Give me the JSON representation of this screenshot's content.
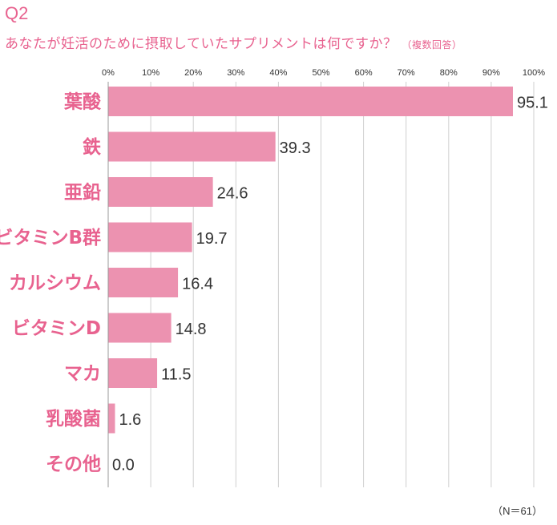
{
  "header": {
    "q_label": "Q2",
    "question": "あなたが妊活のために摂取していたサプリメントは何ですか？",
    "note": "（複数回答）"
  },
  "footnote": "（N＝61）",
  "colors": {
    "accent": "#e8628f",
    "bar": "#ec92b0",
    "grid": "#cfcfcf",
    "value_text": "#333333"
  },
  "chart_data": {
    "type": "bar",
    "orientation": "horizontal",
    "title": "あなたが妊活のために摂取していたサプリメントは何ですか？（複数回答）",
    "xlabel": "",
    "ylabel": "",
    "xlim": [
      0,
      100
    ],
    "x_tick_labels": [
      "0%",
      "10%",
      "20%",
      "30%",
      "40%",
      "50%",
      "60%",
      "70%",
      "80%",
      "90%",
      "100%"
    ],
    "categories": [
      "葉酸",
      "鉄",
      "亜鉛",
      "ビタミンB群",
      "カルシウム",
      "ビタミンD",
      "マカ",
      "乳酸菌",
      "その他"
    ],
    "values": [
      95.1,
      39.3,
      24.6,
      19.7,
      16.4,
      14.8,
      11.5,
      1.6,
      0.0
    ],
    "value_labels": [
      "95.1",
      "39.3",
      "24.6",
      "19.7",
      "16.4",
      "14.8",
      "11.5",
      "1.6",
      "0.0"
    ],
    "grid": true,
    "legend": "none"
  }
}
